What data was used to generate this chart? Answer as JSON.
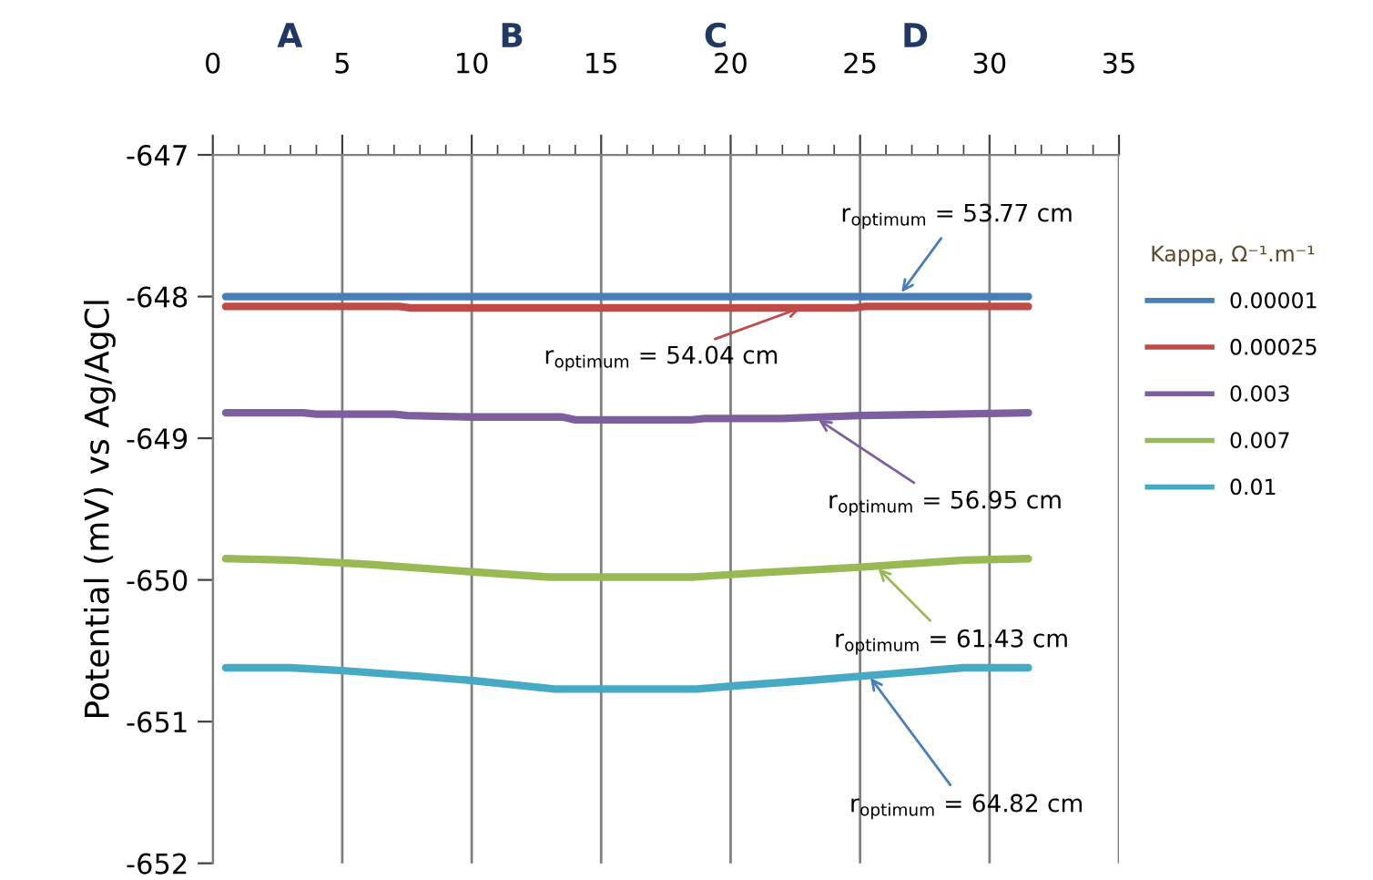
{
  "chart_data": {
    "type": "line",
    "xlim": [
      0,
      35
    ],
    "xticks": [
      0,
      5,
      10,
      15,
      20,
      25,
      30,
      35
    ],
    "ylim": [
      -652,
      -647
    ],
    "yticks": [
      -652,
      -651,
      -650,
      -649,
      -648,
      -647
    ],
    "ylabel": "Potential (mV) vs Ag/AgCl",
    "legend_title": "Kappa, Ω⁻¹.m⁻¹",
    "legend": "right",
    "grid": "x",
    "marker": "none",
    "line_style": "solid",
    "series": [
      {
        "name": "0.00001",
        "color": "#4a7ebb",
        "x": [
          0.5,
          31.5
        ],
        "values": [
          -648.0,
          -648.0
        ]
      },
      {
        "name": "0.00025",
        "color": "#be4b48",
        "x": [
          0.5,
          7.2,
          7.6,
          24.8,
          25.2,
          31.5
        ],
        "values": [
          -648.07,
          -648.07,
          -648.08,
          -648.08,
          -648.07,
          -648.07
        ]
      },
      {
        "name": "0.003",
        "color": "#7d5fa0",
        "x": [
          0.5,
          3.5,
          4,
          7,
          7.5,
          10,
          13.5,
          14,
          18.5,
          19,
          22,
          25,
          28.5,
          31.5
        ],
        "values": [
          -648.82,
          -648.82,
          -648.83,
          -648.83,
          -648.84,
          -648.85,
          -648.85,
          -648.87,
          -648.87,
          -648.86,
          -648.86,
          -648.84,
          -648.83,
          -648.82
        ]
      },
      {
        "name": "0.007",
        "color": "#98b954",
        "x": [
          0.5,
          3,
          6,
          9,
          13,
          18.5,
          21,
          25,
          29,
          31.5
        ],
        "values": [
          -649.85,
          -649.86,
          -649.89,
          -649.93,
          -649.98,
          -649.98,
          -649.95,
          -649.91,
          -649.86,
          -649.85
        ]
      },
      {
        "name": "0.01",
        "color": "#46aac5",
        "x": [
          0.5,
          3,
          5,
          8,
          10,
          13.2,
          18.7,
          20,
          23,
          25,
          29,
          31.5
        ],
        "values": [
          -650.62,
          -650.62,
          -650.64,
          -650.68,
          -650.71,
          -650.77,
          -650.77,
          -650.75,
          -650.71,
          -650.68,
          -650.62,
          -650.62
        ]
      }
    ],
    "annotations": [
      {
        "text": "r$_{optimum}$ = 53.77 cm",
        "x": 26.6,
        "y": -647.97
      },
      {
        "text": "r$_{optimum}$ = 54.04 cm",
        "x": 22.7,
        "y": -648.08
      },
      {
        "text": "r$_{optimum}$ = 56.95 cm",
        "x": 23.4,
        "y": -648.87
      },
      {
        "text": "r$_{optimum}$ = 61.43 cm",
        "x": 25.7,
        "y": -649.92
      },
      {
        "text": "r$_{optimum}$ = 64.82 cm",
        "x": 25.4,
        "y": -650.69
      },
      "A",
      "B",
      "C",
      "D"
    ]
  }
}
